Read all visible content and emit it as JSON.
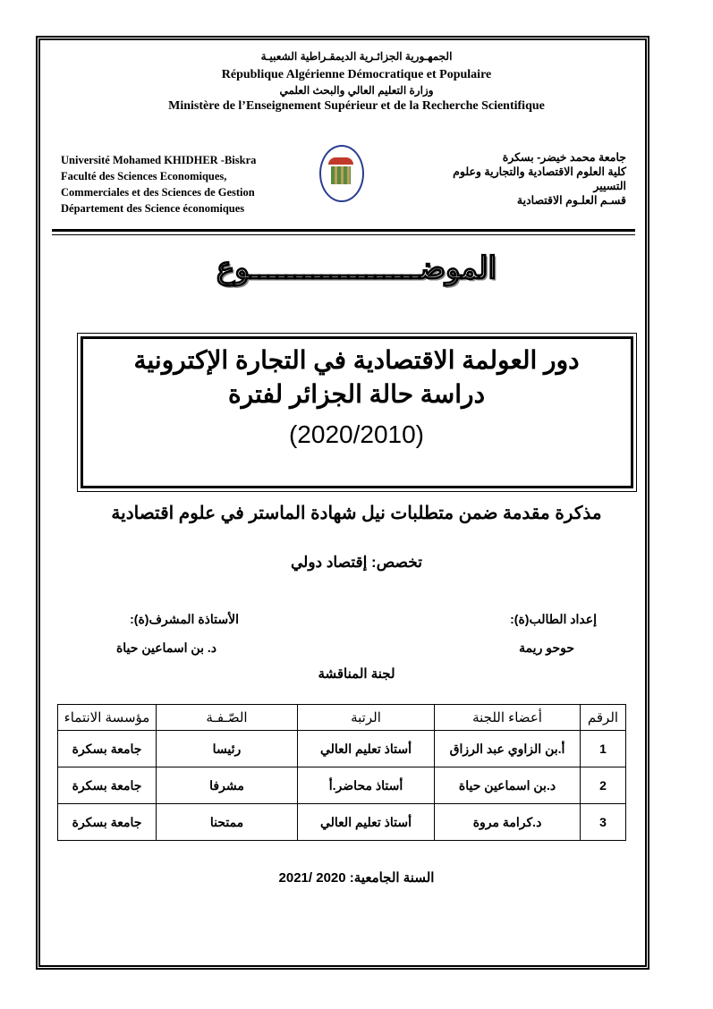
{
  "header": {
    "ar_republic": "الجمهـورية الجزائـرية الديمقـراطية الشعبيـة",
    "fr_republic": "République Algérienne Démocratique et Populaire",
    "ar_ministry": "وزارة التعليم العالي والبحث العلمي",
    "fr_ministry": "Ministère de l’Enseignement Supérieur et de la Recherche Scientifique",
    "fr_lines": [
      "Université Mohamed KHIDHER -Biskra",
      "Faculté des Sciences Economiques,",
      "Commerciales et des Sciences de Gestion",
      "Département des Science économiques"
    ],
    "ar_lines": [
      "جامعة محمد خيضر- بسكرة",
      "كلية العلوم الاقتصادية والتجارية وعلوم",
      "التسيير",
      "قسـم العلـوم الاقتصادية"
    ]
  },
  "subject_heading": "الموضـــــــــــــــــــوع",
  "title": {
    "line1": "دور العولمة الاقتصادية في التجارة الإكترونية",
    "line2": "دراسة حالة  الجزائر لفترة",
    "line3": "(2020/2010)"
  },
  "thesis": "مذكرة مقدمة ضمن متطلبات نيل شهادة الماستر في علوم اقتصادية",
  "specialty": "تخصص: إقتصاد دولي",
  "student_label": "إعداد الطالب(ة):",
  "student_name": "حوحو ريمة",
  "supervisor_label": "الأستاذة المشرف(ة):",
  "supervisor_name": "د. بن اسماعين حياة",
  "committee_title": "لجنة المناقشة",
  "table": {
    "headers": [
      "الرقم",
      "أعضاء اللجنة",
      "الرتبة",
      "الصّـفـة",
      "مؤسسة الانتماء"
    ],
    "rows": [
      [
        "1",
        "أ.بن الزاوي عبد الرزاق",
        "أستاذ تعليم العالي",
        "رئيسا",
        "جامعة بسكرة"
      ],
      [
        "2",
        "د.بن اسماعين حياة",
        "أستاذ محاضر.أ",
        "مشرفا",
        "جامعة بسكرة"
      ],
      [
        "3",
        "د.كرامة مروة",
        "أستاذ تعليم العالي",
        "ممتحنا",
        "جامعة بسكرة"
      ]
    ]
  },
  "academic_year": "السنة الجامعية: 2020 /2021"
}
